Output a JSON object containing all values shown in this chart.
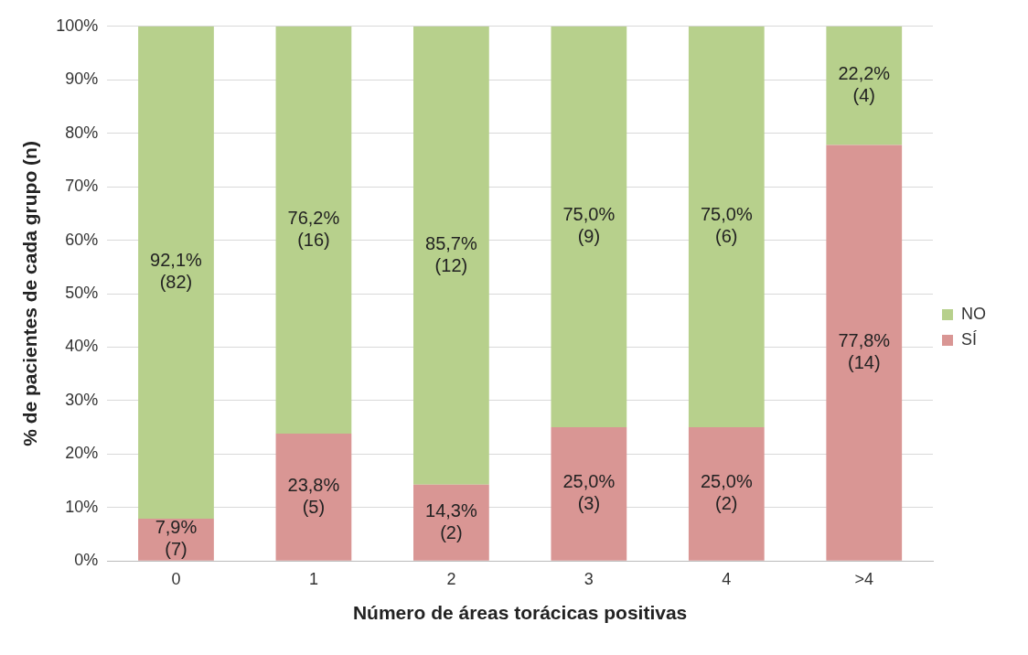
{
  "chart_data": {
    "type": "bar",
    "stacked": true,
    "xlabel": "Número de áreas torácicas positivas",
    "ylabel": "% de pacientes de cada grupo (n)",
    "categories": [
      "0",
      "1",
      "2",
      "3",
      "4",
      ">4"
    ],
    "series": [
      {
        "name": "SÍ",
        "color": "#d99694",
        "values": [
          7.9,
          23.8,
          14.3,
          25.0,
          25.0,
          77.8
        ],
        "value_labels": [
          "7,9%\n(7)",
          "23,8%\n(5)",
          "14,3%\n(2)",
          "25,0%\n(3)",
          "25,0%\n(2)",
          "77,8%\n(14)"
        ]
      },
      {
        "name": "NO",
        "color": "#b7d08c",
        "values": [
          92.1,
          76.2,
          85.7,
          75.0,
          75.0,
          22.2
        ],
        "value_labels": [
          "92,1%\n(82)",
          "76,2%\n(16)",
          "85,7%\n(12)",
          "75,0%\n(9)",
          "75,0%\n(6)",
          "22,2%\n(4)"
        ]
      }
    ],
    "ylim": [
      0,
      100
    ],
    "yticks": [
      {
        "value": 0,
        "label": "0%"
      },
      {
        "value": 10,
        "label": "10%"
      },
      {
        "value": 20,
        "label": "20%"
      },
      {
        "value": 30,
        "label": "30%"
      },
      {
        "value": 40,
        "label": "40%"
      },
      {
        "value": 50,
        "label": "50%"
      },
      {
        "value": 60,
        "label": "60%"
      },
      {
        "value": 70,
        "label": "70%"
      },
      {
        "value": 80,
        "label": "80%"
      },
      {
        "value": 90,
        "label": "90%"
      },
      {
        "value": 100,
        "label": "100%"
      }
    ],
    "grid": "y",
    "legend": "right"
  }
}
